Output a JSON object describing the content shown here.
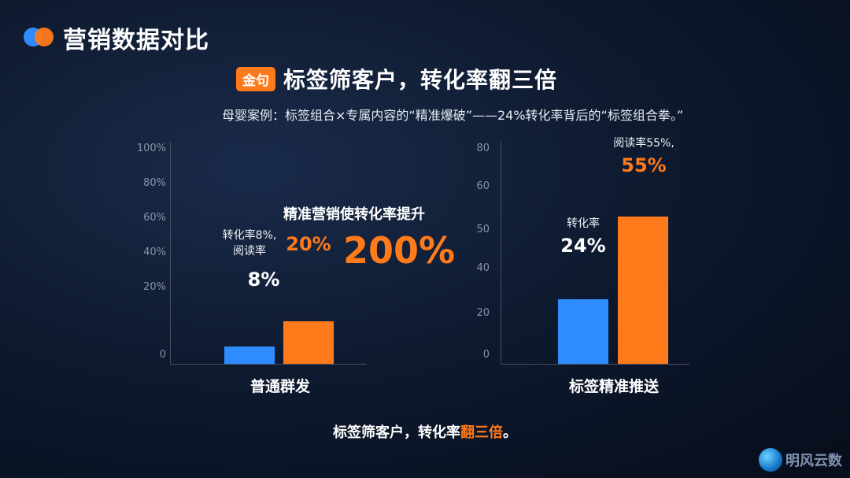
{
  "page_title": "营销数据对比",
  "tag": "金句",
  "headline": "标签筛客户，转化率翻三倍",
  "subhead": "母婴案例：标签组合×专属内容的“精准爆破”——24%转化率背后的“标签组合拳。”",
  "watermark": "明风云数",
  "colors": {
    "blue": "#2f8cff",
    "orange": "#ff7a1a"
  },
  "chart_data": [
    {
      "type": "bar",
      "category": "普通群发",
      "yticks": [
        "100%",
        "80%",
        "60%",
        "40%",
        "20%",
        "0"
      ],
      "ylim": [
        0,
        100
      ],
      "bars": [
        {
          "value": 8,
          "color": "blue",
          "label_small": "转化率8%,\n阅读率",
          "label_big": "8%"
        },
        {
          "value": 20,
          "color": "orange",
          "label_big": "20%"
        }
      ],
      "annotation": "精准营销使转化率提升",
      "annotation_big": "200%"
    },
    {
      "type": "bar",
      "category": "标签精准推送",
      "yticks": [
        "80",
        "60",
        "50",
        "40",
        "20",
        "0"
      ],
      "ylim": [
        0,
        80
      ],
      "bars": [
        {
          "value": 24,
          "color": "blue",
          "label_small": "转化率",
          "label_big": "24%"
        },
        {
          "value": 55,
          "color": "orange",
          "label_small": "阅读率55%,",
          "label_big": "55%"
        }
      ]
    }
  ],
  "conclusion": {
    "before": "标签筛客户，转化率",
    "highlight": "翻三倍",
    "after": "。"
  }
}
